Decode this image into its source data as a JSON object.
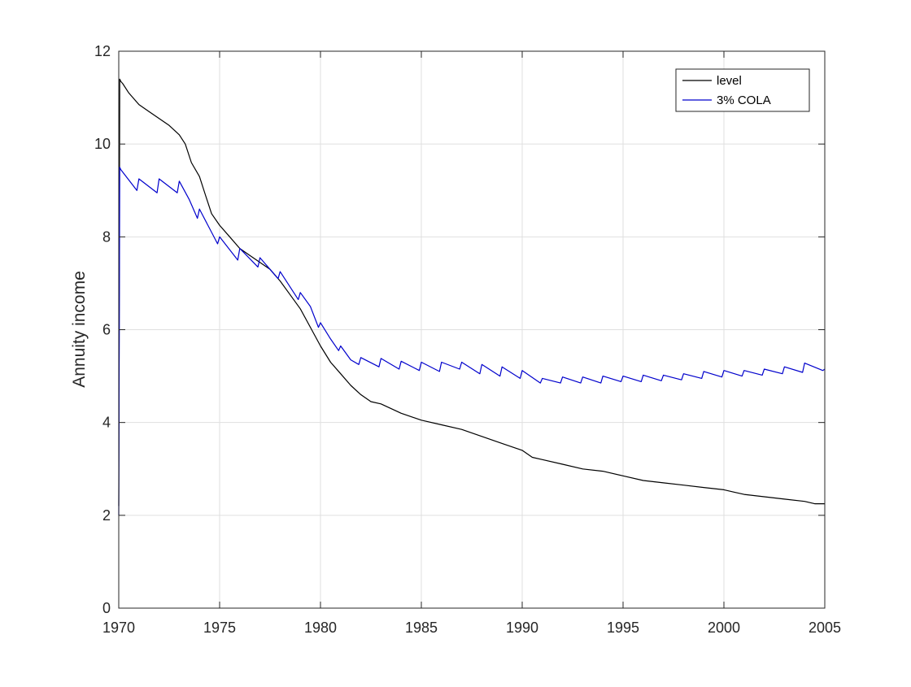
{
  "chart_data": {
    "type": "line",
    "title": "",
    "xlabel": "",
    "ylabel": "Annuity income",
    "xlim": [
      1970,
      2005
    ],
    "ylim": [
      0,
      12
    ],
    "xticks": [
      1970,
      1975,
      1980,
      1985,
      1990,
      1995,
      2000,
      2005
    ],
    "yticks": [
      0,
      2,
      4,
      6,
      8,
      10,
      12
    ],
    "grid": true,
    "legend": "top-right",
    "series": [
      {
        "name": "level",
        "color": "#000000",
        "x": [
          1970.0,
          1970.05,
          1970.1,
          1970.2,
          1970.5,
          1971.0,
          1971.5,
          1972.0,
          1972.5,
          1973.0,
          1973.3,
          1973.6,
          1974.0,
          1974.3,
          1974.6,
          1975.0,
          1975.5,
          1976.0,
          1976.5,
          1977.0,
          1977.5,
          1978.0,
          1978.5,
          1979.0,
          1979.5,
          1980.0,
          1980.5,
          1981.0,
          1981.5,
          1982.0,
          1982.5,
          1983.0,
          1984.0,
          1985.0,
          1986.0,
          1987.0,
          1988.0,
          1989.0,
          1990.0,
          1990.5,
          1991.0,
          1992.0,
          1993.0,
          1994.0,
          1995.0,
          1996.0,
          1997.0,
          1998.0,
          1999.0,
          2000.0,
          2000.5,
          2001.0,
          2002.0,
          2003.0,
          2004.0,
          2004.5,
          2005.0
        ],
        "y": [
          2.2,
          11.4,
          11.35,
          11.3,
          11.1,
          10.85,
          10.7,
          10.55,
          10.4,
          10.2,
          10.0,
          9.6,
          9.3,
          8.9,
          8.5,
          8.25,
          8.0,
          7.75,
          7.6,
          7.45,
          7.3,
          7.05,
          6.75,
          6.45,
          6.05,
          5.65,
          5.3,
          5.05,
          4.8,
          4.6,
          4.45,
          4.4,
          4.2,
          4.05,
          3.95,
          3.85,
          3.7,
          3.55,
          3.4,
          3.25,
          3.2,
          3.1,
          3.0,
          2.95,
          2.85,
          2.75,
          2.7,
          2.65,
          2.6,
          2.55,
          2.5,
          2.45,
          2.4,
          2.35,
          2.3,
          2.25,
          2.25
        ]
      },
      {
        "name": "3% COLA",
        "color": "#0000cc",
        "x": [
          1970.0,
          1970.05,
          1970.1,
          1970.9,
          1971.0,
          1971.9,
          1972.0,
          1972.9,
          1973.0,
          1973.5,
          1973.9,
          1974.0,
          1974.9,
          1975.0,
          1975.9,
          1976.0,
          1976.9,
          1977.0,
          1977.9,
          1978.0,
          1978.9,
          1979.0,
          1979.5,
          1979.9,
          1980.0,
          1980.5,
          1980.9,
          1981.0,
          1981.5,
          1981.9,
          1982.0,
          1982.9,
          1983.0,
          1983.9,
          1984.0,
          1984.9,
          1985.0,
          1985.9,
          1986.0,
          1986.9,
          1987.0,
          1987.9,
          1988.0,
          1988.9,
          1989.0,
          1989.9,
          1990.0,
          1990.9,
          1991.0,
          1991.9,
          1992.0,
          1992.9,
          1993.0,
          1993.9,
          1994.0,
          1994.9,
          1995.0,
          1995.9,
          1996.0,
          1996.9,
          1997.0,
          1997.9,
          1998.0,
          1998.9,
          1999.0,
          1999.9,
          2000.0,
          2000.9,
          2001.0,
          2001.9,
          2002.0,
          2002.9,
          2003.0,
          2003.9,
          2004.0,
          2004.9,
          2005.0
        ],
        "y": [
          2.0,
          9.5,
          9.45,
          9.0,
          9.25,
          8.95,
          9.25,
          8.95,
          9.2,
          8.8,
          8.4,
          8.6,
          7.85,
          8.0,
          7.5,
          7.75,
          7.35,
          7.55,
          7.1,
          7.25,
          6.65,
          6.8,
          6.5,
          6.05,
          6.15,
          5.8,
          5.55,
          5.65,
          5.35,
          5.25,
          5.4,
          5.2,
          5.38,
          5.15,
          5.32,
          5.12,
          5.3,
          5.1,
          5.3,
          5.15,
          5.3,
          5.05,
          5.25,
          5.0,
          5.2,
          4.95,
          5.12,
          4.85,
          4.95,
          4.85,
          4.98,
          4.85,
          4.98,
          4.85,
          5.0,
          4.88,
          5.0,
          4.88,
          5.02,
          4.9,
          5.02,
          4.92,
          5.05,
          4.95,
          5.1,
          4.98,
          5.12,
          5.0,
          5.12,
          5.02,
          5.15,
          5.05,
          5.2,
          5.08,
          5.28,
          5.12,
          5.15
        ]
      }
    ]
  }
}
